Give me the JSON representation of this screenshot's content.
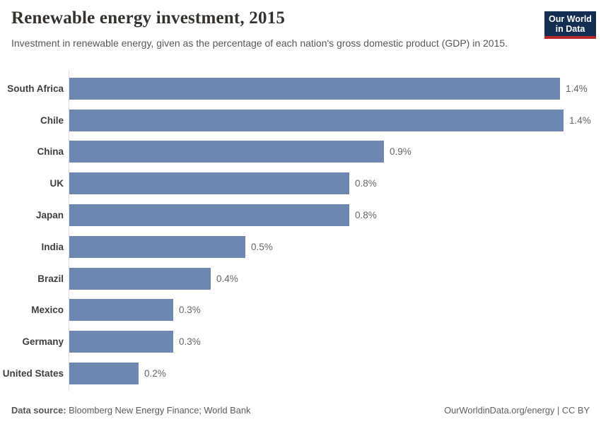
{
  "header": {
    "title": "Renewable energy investment, 2015",
    "subtitle": "Investment in renewable energy, given as the percentage of each nation's gross domestic product (GDP) in 2015.",
    "logo": {
      "line1": "Our World",
      "line2": "in Data"
    }
  },
  "chart_data": {
    "type": "bar",
    "orientation": "horizontal",
    "title": "Renewable energy investment, 2015",
    "xlabel": "",
    "ylabel": "",
    "xlim": [
      0,
      1.5
    ],
    "grid": false,
    "legend": false,
    "categories": [
      "South Africa",
      "Chile",
      "China",
      "UK",
      "Japan",
      "India",
      "Brazil",
      "Mexico",
      "Germany",
      "United States"
    ],
    "values": [
      1.42,
      1.43,
      0.91,
      0.81,
      0.81,
      0.51,
      0.41,
      0.3,
      0.3,
      0.2
    ],
    "value_labels": [
      "1.4%",
      "1.4%",
      "0.9%",
      "0.8%",
      "0.8%",
      "0.5%",
      "0.4%",
      "0.3%",
      "0.3%",
      "0.2%"
    ],
    "unit": "% of GDP"
  },
  "footer": {
    "source_label": "Data source:",
    "source_value": "Bloomberg New Energy Finance; World Bank",
    "credit": "OurWorldinData.org/energy | CC BY"
  },
  "colors": {
    "bar": "#6d87b0",
    "axis_line": "#dcdcdc",
    "logo_bg": "#132e53",
    "logo_accent": "#b5292a"
  }
}
